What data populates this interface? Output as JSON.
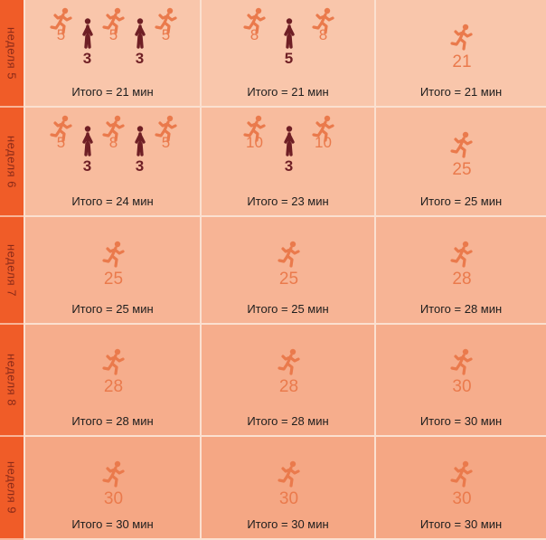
{
  "colors": {
    "run": "#ea7a4c",
    "walk": "#6f1f25",
    "side": "#f05c28"
  },
  "icons": {
    "run": "running-person-icon",
    "walk": "walking-person-icon"
  },
  "rows": [
    {
      "label": "неделя 5",
      "cells": [
        {
          "total": "Итого  = 21 мин",
          "segments": [
            {
              "t": "run",
              "v": "5"
            },
            {
              "t": "walk",
              "v": "3"
            },
            {
              "t": "run",
              "v": "5"
            },
            {
              "t": "walk",
              "v": "3"
            },
            {
              "t": "run",
              "v": "5"
            }
          ]
        },
        {
          "total": "Итого  = 21 мин",
          "segments": [
            {
              "t": "run",
              "v": "8"
            },
            {
              "t": "walk",
              "v": "5"
            },
            {
              "t": "run",
              "v": "8"
            }
          ]
        },
        {
          "total": "Итого  = 21 мин",
          "segments": [
            {
              "t": "run",
              "v": "21"
            }
          ]
        }
      ]
    },
    {
      "label": "неделя 6",
      "cells": [
        {
          "total": "Итого  = 24 мин",
          "segments": [
            {
              "t": "run",
              "v": "5"
            },
            {
              "t": "walk",
              "v": "3"
            },
            {
              "t": "run",
              "v": "8"
            },
            {
              "t": "walk",
              "v": "3"
            },
            {
              "t": "run",
              "v": "5"
            }
          ]
        },
        {
          "total": "Итого  = 23 мин",
          "segments": [
            {
              "t": "run",
              "v": "10"
            },
            {
              "t": "walk",
              "v": "3"
            },
            {
              "t": "run",
              "v": "10"
            }
          ]
        },
        {
          "total": "Итого  = 25 мин",
          "segments": [
            {
              "t": "run",
              "v": "25"
            }
          ]
        }
      ]
    },
    {
      "label": "неделя 7",
      "cells": [
        {
          "total": "Итого  = 25 мин",
          "segments": [
            {
              "t": "run",
              "v": "25"
            }
          ]
        },
        {
          "total": "Итого  = 25 мин",
          "segments": [
            {
              "t": "run",
              "v": "25"
            }
          ]
        },
        {
          "total": "Итого  = 28 мин",
          "segments": [
            {
              "t": "run",
              "v": "28"
            }
          ]
        }
      ]
    },
    {
      "label": "неделя 8",
      "cells": [
        {
          "total": "Итого  = 28 мин",
          "segments": [
            {
              "t": "run",
              "v": "28"
            }
          ]
        },
        {
          "total": "Итого  = 28 мин",
          "segments": [
            {
              "t": "run",
              "v": "28"
            }
          ]
        },
        {
          "total": "Итого  = 30 мин",
          "segments": [
            {
              "t": "run",
              "v": "30"
            }
          ]
        }
      ]
    },
    {
      "label": "неделя 9",
      "cells": [
        {
          "total": "Итого  = 30 мин",
          "segments": [
            {
              "t": "run",
              "v": "30"
            }
          ]
        },
        {
          "total": "Итого  = 30 мин",
          "segments": [
            {
              "t": "run",
              "v": "30"
            }
          ]
        },
        {
          "total": "Итого  = 30 мин",
          "segments": [
            {
              "t": "run",
              "v": "30"
            }
          ]
        }
      ]
    }
  ]
}
